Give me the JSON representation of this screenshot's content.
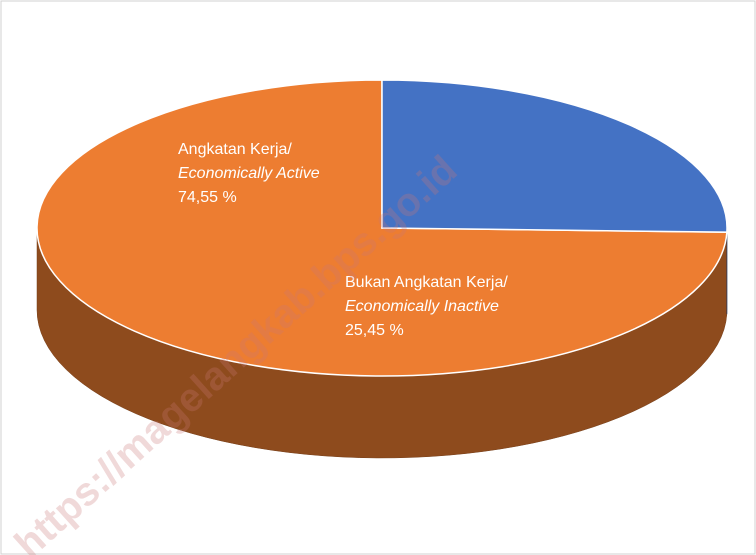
{
  "chart_data": {
    "type": "pie3d",
    "categories": [
      "Angkatan Kerja/",
      "Bukan Angkatan Kerja/"
    ],
    "categories_en": [
      "Economically Active",
      "Economically Inactive"
    ],
    "values": [
      74.55,
      25.45
    ],
    "value_labels": [
      "74,55 %",
      "25,45 %"
    ],
    "colors": [
      "#ed7d31",
      "#4472c4"
    ]
  },
  "watermark": "https://magelangkab.bps.go.id"
}
